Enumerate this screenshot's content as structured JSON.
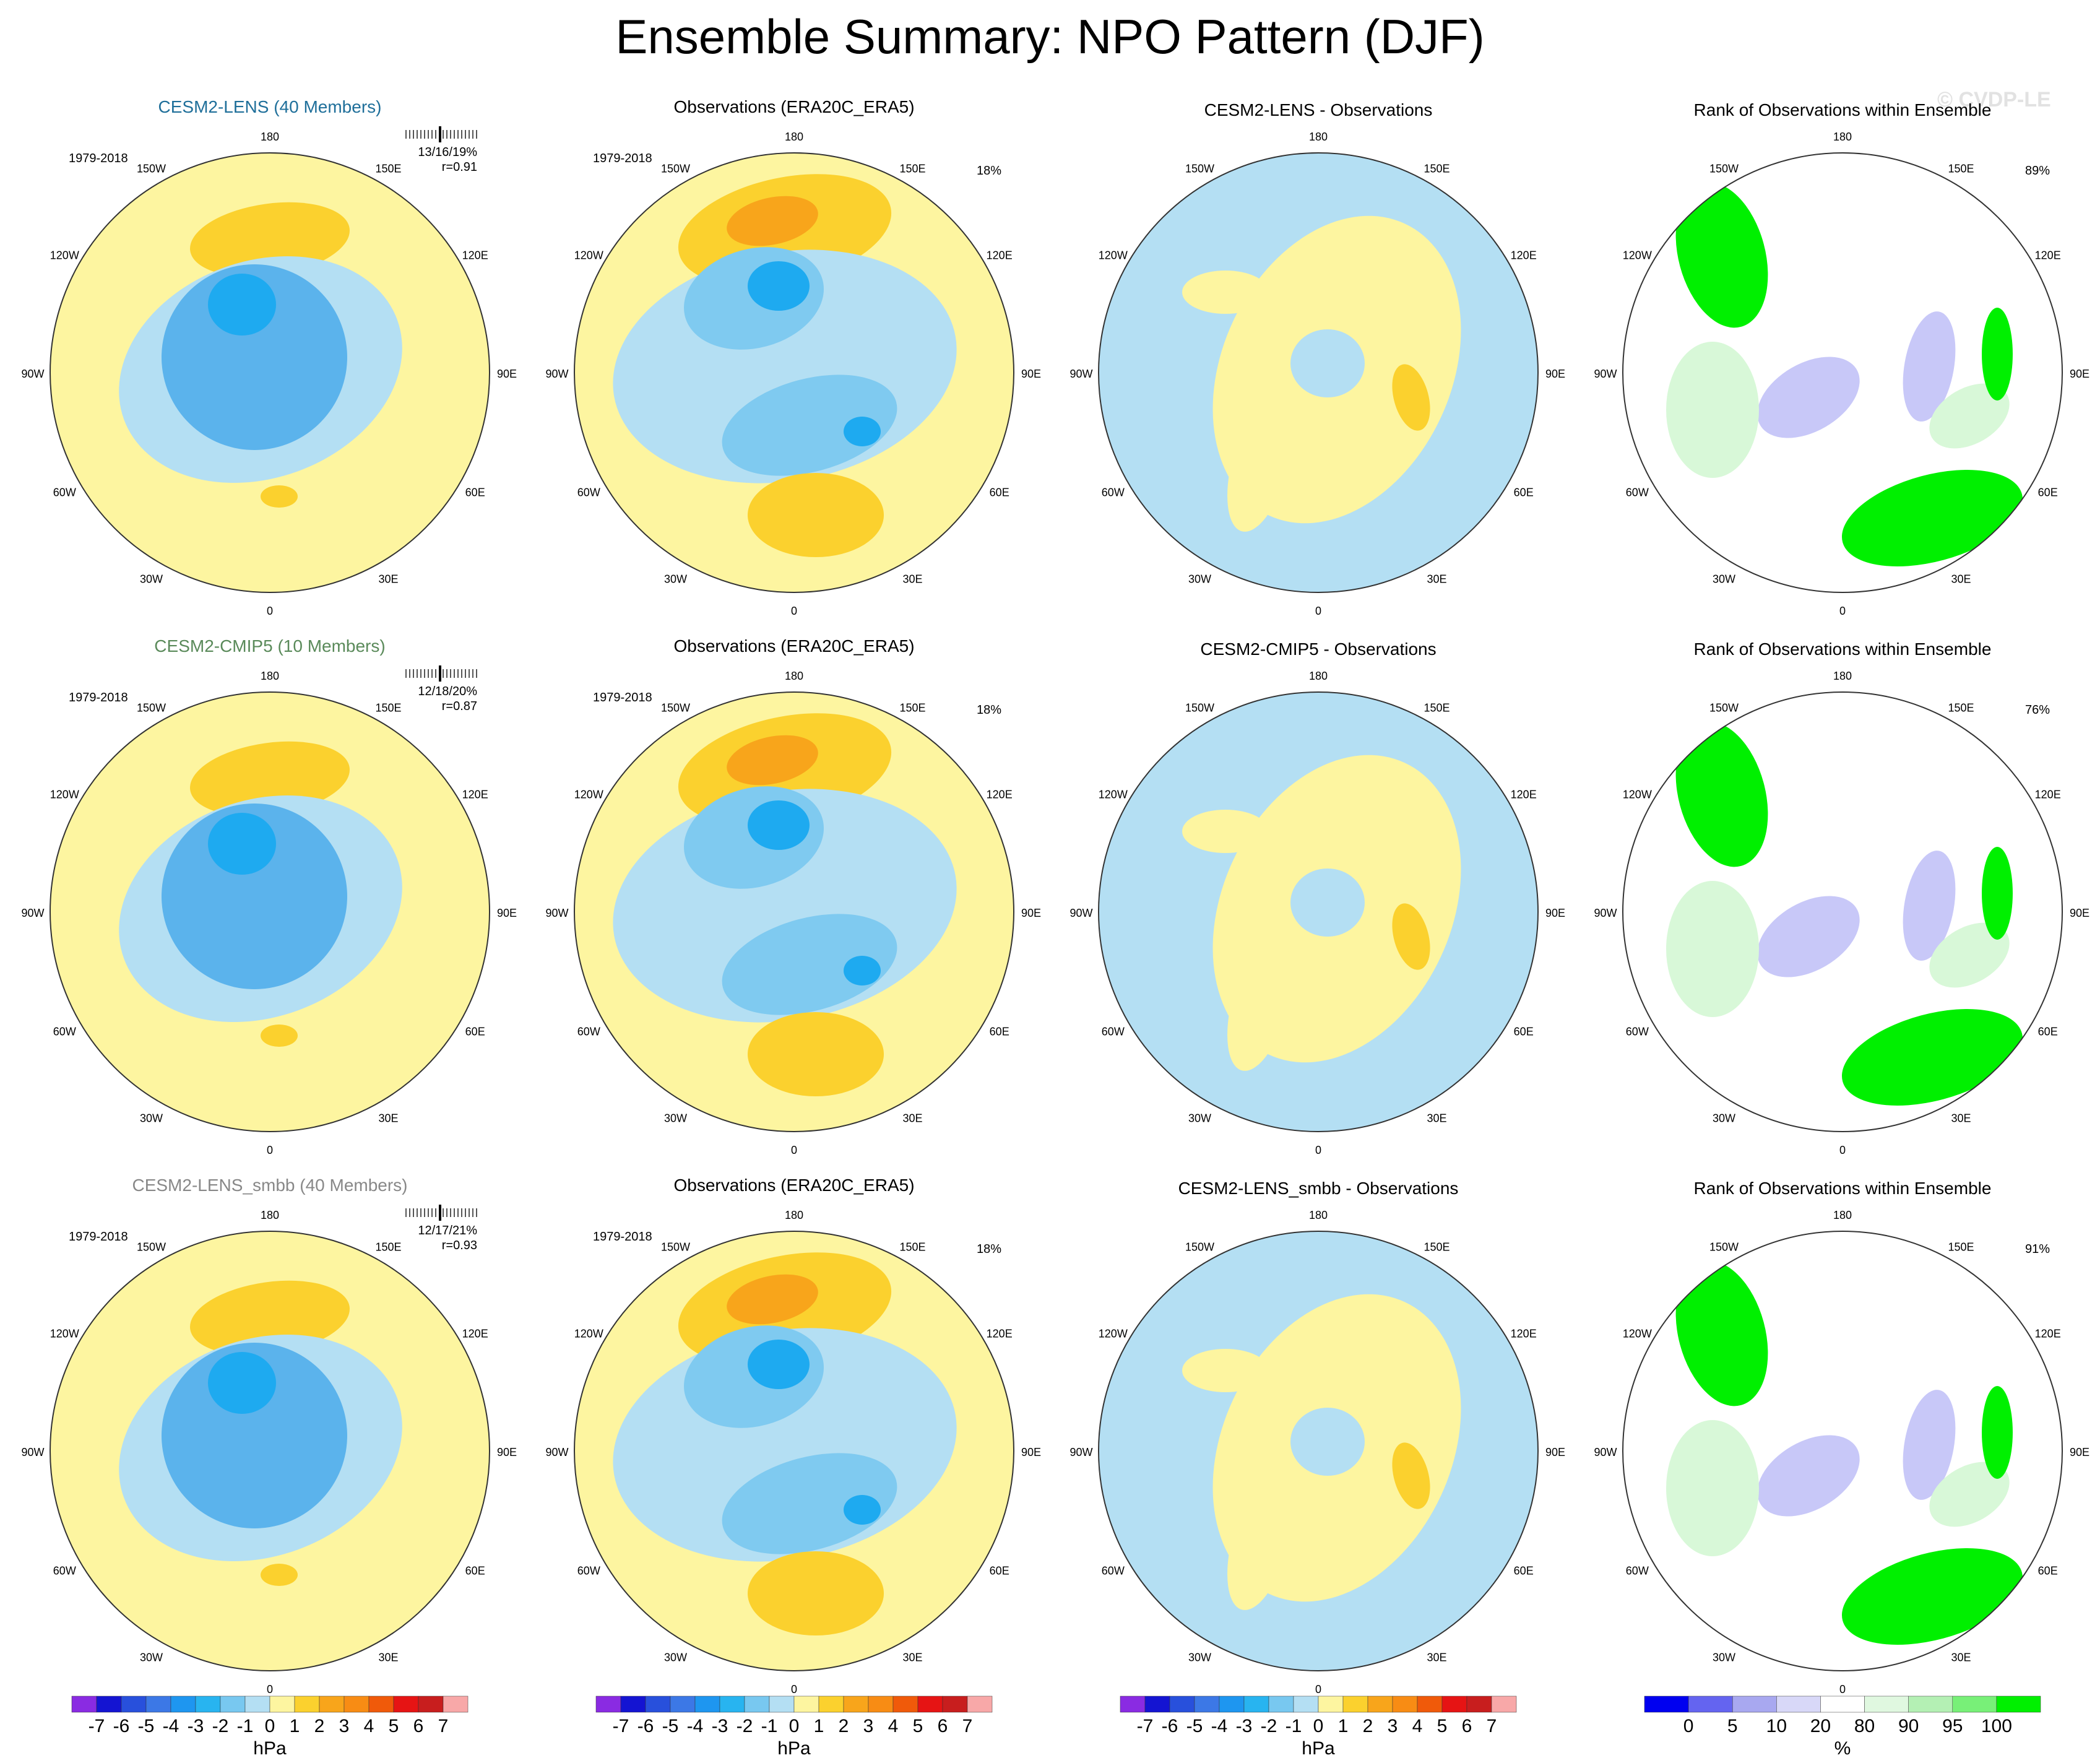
{
  "title": "Ensemble Summary: NPO Pattern (DJF)",
  "watermark": "© CVDP-LE",
  "longitude_labels": [
    "180",
    "150E",
    "120E",
    "90E",
    "60E",
    "30E",
    "0",
    "30W",
    "60W",
    "90W",
    "120W",
    "150W"
  ],
  "colors": {
    "yellow": "#fdf5a0",
    "gold": "#fbd12e",
    "orange": "#f8a51b",
    "lightblue": "#b4dff3",
    "blue2": "#7fcaf0",
    "blue3": "#5bb3ec",
    "cyan": "#1eaaf0",
    "deepblue": "#1464e0",
    "green": "#00f000",
    "rank_blue": "#0000f0",
    "rank_lavender": "#c8c8f8",
    "rank_lightgreen": "#d8f8d8",
    "model_text_1": "#1f6f9a",
    "model_text_2": "#5a8a5a",
    "model_text_3": "#888888"
  },
  "rows": [
    {
      "model_title": "CESM2-LENS (40 Members)",
      "period": "1979-2018",
      "stats": "13/16/19%",
      "corr": "r=0.91",
      "obs_title": "Observations (ERA20C_ERA5)",
      "obs_period": "1979-2018",
      "obs_pct": "18%",
      "diff_title": "CESM2-LENS - Observations",
      "rank_title": "Rank of Observations within Ensemble",
      "rank_pct": "89%"
    },
    {
      "model_title": "CESM2-CMIP5 (10 Members)",
      "period": "1979-2018",
      "stats": "12/18/20%",
      "corr": "r=0.87",
      "obs_title": "Observations (ERA20C_ERA5)",
      "obs_period": "1979-2018",
      "obs_pct": "18%",
      "diff_title": "CESM2-CMIP5 - Observations",
      "rank_title": "Rank of Observations within Ensemble",
      "rank_pct": "76%"
    },
    {
      "model_title": "CESM2-LENS_smbb (40 Members)",
      "period": "1979-2018",
      "stats": "12/17/21%",
      "corr": "r=0.93",
      "obs_title": "Observations (ERA20C_ERA5)",
      "obs_period": "1979-2018",
      "obs_pct": "18%",
      "diff_title": "CESM2-LENS_smbb - Observations",
      "rank_title": "Rank of Observations within Ensemble",
      "rank_pct": "91%"
    }
  ],
  "chart_data": [
    {
      "type": "colorbar",
      "units": "hPa",
      "tick_labels": [
        "-7",
        "-6",
        "-5",
        "-4",
        "-3",
        "-2",
        "-1",
        "0",
        "1",
        "2",
        "3",
        "4",
        "5",
        "6",
        "7"
      ],
      "colors": [
        "#8a2be2",
        "#1414d2",
        "#2850dc",
        "#3c78e6",
        "#1e96f0",
        "#28b4f0",
        "#78c8f0",
        "#b4dff3",
        "#fdf5a0",
        "#fbd12e",
        "#f8a51b",
        "#f88c14",
        "#f05a0a",
        "#e61414",
        "#c81e1e",
        "#f8a8a8"
      ]
    },
    {
      "type": "colorbar",
      "units": "hPa",
      "tick_labels": [
        "-7",
        "-6",
        "-5",
        "-4",
        "-3",
        "-2",
        "-1",
        "0",
        "1",
        "2",
        "3",
        "4",
        "5",
        "6",
        "7"
      ],
      "colors": [
        "#8a2be2",
        "#1414d2",
        "#2850dc",
        "#3c78e6",
        "#1e96f0",
        "#28b4f0",
        "#78c8f0",
        "#b4dff3",
        "#fdf5a0",
        "#fbd12e",
        "#f8a51b",
        "#f88c14",
        "#f05a0a",
        "#e61414",
        "#c81e1e",
        "#f8a8a8"
      ]
    },
    {
      "type": "colorbar",
      "units": "hPa",
      "tick_labels": [
        "-7",
        "-6",
        "-5",
        "-4",
        "-3",
        "-2",
        "-1",
        "0",
        "1",
        "2",
        "3",
        "4",
        "5",
        "6",
        "7"
      ],
      "colors": [
        "#8a2be2",
        "#1414d2",
        "#2850dc",
        "#3c78e6",
        "#1e96f0",
        "#28b4f0",
        "#78c8f0",
        "#b4dff3",
        "#fdf5a0",
        "#fbd12e",
        "#f8a51b",
        "#f88c14",
        "#f05a0a",
        "#e61414",
        "#c81e1e",
        "#f8a8a8"
      ]
    },
    {
      "type": "colorbar",
      "units": "%",
      "tick_labels": [
        "0",
        "5",
        "10",
        "20",
        "80",
        "90",
        "95",
        "100"
      ],
      "colors": [
        "#0000f0",
        "#6464f0",
        "#a8a8f0",
        "#d8d8f8",
        "#ffffff",
        "#e0f8e0",
        "#b4f0b4",
        "#78f078",
        "#00f000"
      ]
    }
  ]
}
